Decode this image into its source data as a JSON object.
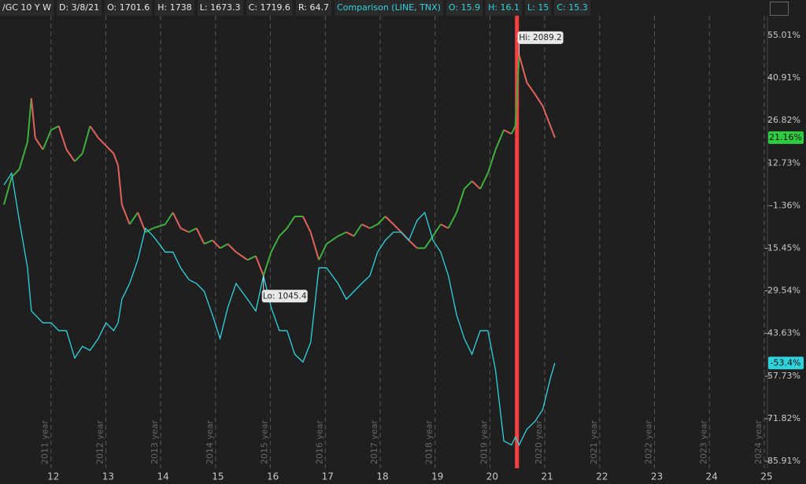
{
  "header": {
    "symbol_items": [
      "/GC 10 Y W",
      "D: 3/8/21",
      "O: 1701.6",
      "H: 1738",
      "L: 1673.3",
      "C: 1719.6",
      "R: 64.7"
    ],
    "comparison_items": [
      "Comparison (LINE, TNX)",
      "O: 15.9",
      "H: 16.1",
      "L: 15",
      "C: 15.3"
    ]
  },
  "chart_data": {
    "type": "line",
    "x": [
      2011.1,
      2011.24,
      2011.38,
      2011.53,
      2011.6,
      2011.67,
      2011.81,
      2011.96,
      2012.1,
      2012.24,
      2012.39,
      2012.53,
      2012.67,
      2012.82,
      2012.96,
      2013.1,
      2013.18,
      2013.25,
      2013.39,
      2013.54,
      2013.68,
      2013.82,
      2014.04,
      2014.18,
      2014.32,
      2014.47,
      2014.61,
      2014.75,
      2014.9,
      2015.04,
      2015.18,
      2015.33,
      2015.54,
      2015.69,
      2015.83,
      2015.97,
      2016.12,
      2016.26,
      2016.4,
      2016.55,
      2016.69,
      2016.84,
      2016.98,
      2017.19,
      2017.34,
      2017.48,
      2017.62,
      2017.77,
      2017.91,
      2018.05,
      2018.2,
      2018.34,
      2018.48,
      2018.63,
      2018.77,
      2018.92,
      2019.06,
      2019.2,
      2019.35,
      2019.49,
      2019.63,
      2019.78,
      2019.92,
      2020.06,
      2020.21,
      2020.35,
      2020.42,
      2020.49,
      2020.63,
      2020.78,
      2020.92,
      2021.06,
      2021.14
    ],
    "series": [
      {
        "up_color": "#3fae3f",
        "down_color": "#e2625c",
        "last_label": "21.16%",
        "label_color": "#2ecc40",
        "values": [
          -1.0,
          8.1,
          10.7,
          19.8,
          34.2,
          21.1,
          17.2,
          23.7,
          25.0,
          17.2,
          13.3,
          15.9,
          25.0,
          21.1,
          18.5,
          15.9,
          12.0,
          -1.0,
          -7.5,
          -3.6,
          -10.1,
          -8.8,
          -7.5,
          -3.6,
          -8.8,
          -10.1,
          -8.8,
          -14.0,
          -12.8,
          -15.4,
          -14.0,
          -16.7,
          -19.3,
          -18.0,
          -24.5,
          -16.7,
          -11.4,
          -8.8,
          -4.9,
          -4.9,
          -10.1,
          -19.3,
          -14.0,
          -11.4,
          -10.1,
          -11.4,
          -7.5,
          -8.8,
          -7.5,
          -4.9,
          -7.5,
          -10.1,
          -12.8,
          -15.4,
          -15.4,
          -11.4,
          -7.5,
          -8.8,
          -3.6,
          4.2,
          6.8,
          4.2,
          9.4,
          17.2,
          23.7,
          22.4,
          25.0,
          48.5,
          39.4,
          35.5,
          31.6,
          25.0,
          21.16
        ]
      },
      {
        "color": "#2fd3dc",
        "last_label": "-53.4%",
        "label_color": "#2fd3dc",
        "values": [
          5.5,
          9.4,
          -6.2,
          -21.9,
          -36.2,
          -37.5,
          -40.1,
          -40.1,
          -42.7,
          -42.7,
          -51.8,
          -47.9,
          -49.2,
          -45.3,
          -40.1,
          -42.7,
          -40.1,
          -32.3,
          -27.1,
          -19.3,
          -8.8,
          -11.4,
          -16.7,
          -16.7,
          -21.9,
          -25.8,
          -27.1,
          -29.7,
          -37.5,
          -45.3,
          -35.0,
          -27.1,
          -32.3,
          -36.2,
          -24.5,
          -35.0,
          -42.7,
          -42.7,
          -50.5,
          -53.1,
          -46.6,
          -21.9,
          -21.9,
          -27.1,
          -32.3,
          -29.7,
          -27.1,
          -24.5,
          -16.7,
          -12.8,
          -10.1,
          -10.1,
          -12.8,
          -6.2,
          -3.6,
          -12.8,
          -16.7,
          -24.5,
          -37.5,
          -45.3,
          -50.5,
          -42.7,
          -42.7,
          -55.8,
          -79.2,
          -80.5,
          -77.9,
          -80.5,
          -75.3,
          -72.7,
          -68.8,
          -58.4,
          -53.4
        ]
      }
    ],
    "annotations": [
      {
        "text": "Hi: 2089.2",
        "x": 2020.49,
        "y": 48.5
      },
      {
        "text": "Lo: 1045.4",
        "x": 2015.83,
        "y": -24.5
      }
    ],
    "marker_x": 2020.45,
    "marker_color": "#ff4040",
    "xlim": [
      2011.1,
      2024.9
    ],
    "xticks": [
      {
        "value": 2012,
        "label": "12"
      },
      {
        "value": 2013,
        "label": "13"
      },
      {
        "value": 2014,
        "label": "14"
      },
      {
        "value": 2015,
        "label": "15"
      },
      {
        "value": 2016,
        "label": "16"
      },
      {
        "value": 2017,
        "label": "17"
      },
      {
        "value": 2018,
        "label": "18"
      },
      {
        "value": 2019,
        "label": "19"
      },
      {
        "value": 2020,
        "label": "20"
      },
      {
        "value": 2021,
        "label": "21"
      },
      {
        "value": 2022,
        "label": "22"
      },
      {
        "value": 2023,
        "label": "23"
      },
      {
        "value": 2024,
        "label": "24"
      },
      {
        "value": 2025,
        "label": "25"
      }
    ],
    "year_labels": [
      "2011 year",
      "2012 year",
      "2013 year",
      "2014 year",
      "2015 year",
      "2016 year",
      "2017 year",
      "2018 year",
      "2019 year",
      "2020 year",
      "2021 year",
      "2022 year",
      "2023 year",
      "2024 year"
    ],
    "ylim": [
      -87.7,
      61.5
    ],
    "yticks": [
      {
        "value": 55.01,
        "label": "55.01%"
      },
      {
        "value": 40.91,
        "label": "40.91%"
      },
      {
        "value": 26.82,
        "label": "26.82%"
      },
      {
        "value": 12.73,
        "label": "12.73%"
      },
      {
        "value": -1.36,
        "label": "-1.36%"
      },
      {
        "value": -15.45,
        "label": "-15.45%"
      },
      {
        "value": -29.54,
        "label": "-29.54%"
      },
      {
        "value": -43.63,
        "label": "-43.63%"
      },
      {
        "value": -57.73,
        "label": "-57.73%"
      },
      {
        "value": -71.82,
        "label": "-71.82%"
      },
      {
        "value": -85.91,
        "label": "-85.91%"
      }
    ]
  }
}
